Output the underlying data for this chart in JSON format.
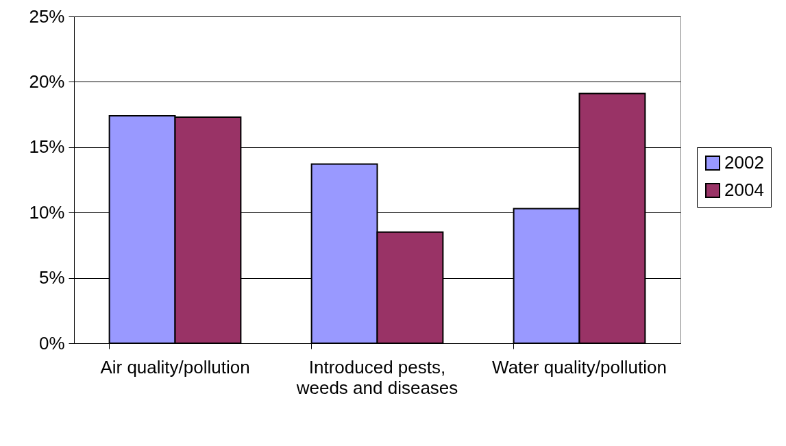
{
  "chart_data": {
    "type": "bar",
    "categories": [
      "Air quality/pollution",
      "Introduced pests, weeds and diseases",
      "Water quality/pollution"
    ],
    "series": [
      {
        "name": "2002",
        "color": "#9999ff",
        "values": [
          17.4,
          13.7,
          10.3
        ]
      },
      {
        "name": "2004",
        "color": "#993366",
        "values": [
          17.3,
          8.5,
          19.1
        ]
      }
    ],
    "ylim": [
      0,
      25
    ],
    "yticks": [
      {
        "value": 0,
        "label": "0%"
      },
      {
        "value": 5,
        "label": "5%"
      },
      {
        "value": 10,
        "label": "10%"
      },
      {
        "value": 15,
        "label": "15%"
      },
      {
        "value": 20,
        "label": "20%"
      },
      {
        "value": 25,
        "label": "25%"
      }
    ],
    "grid": "y",
    "legend": "right"
  }
}
